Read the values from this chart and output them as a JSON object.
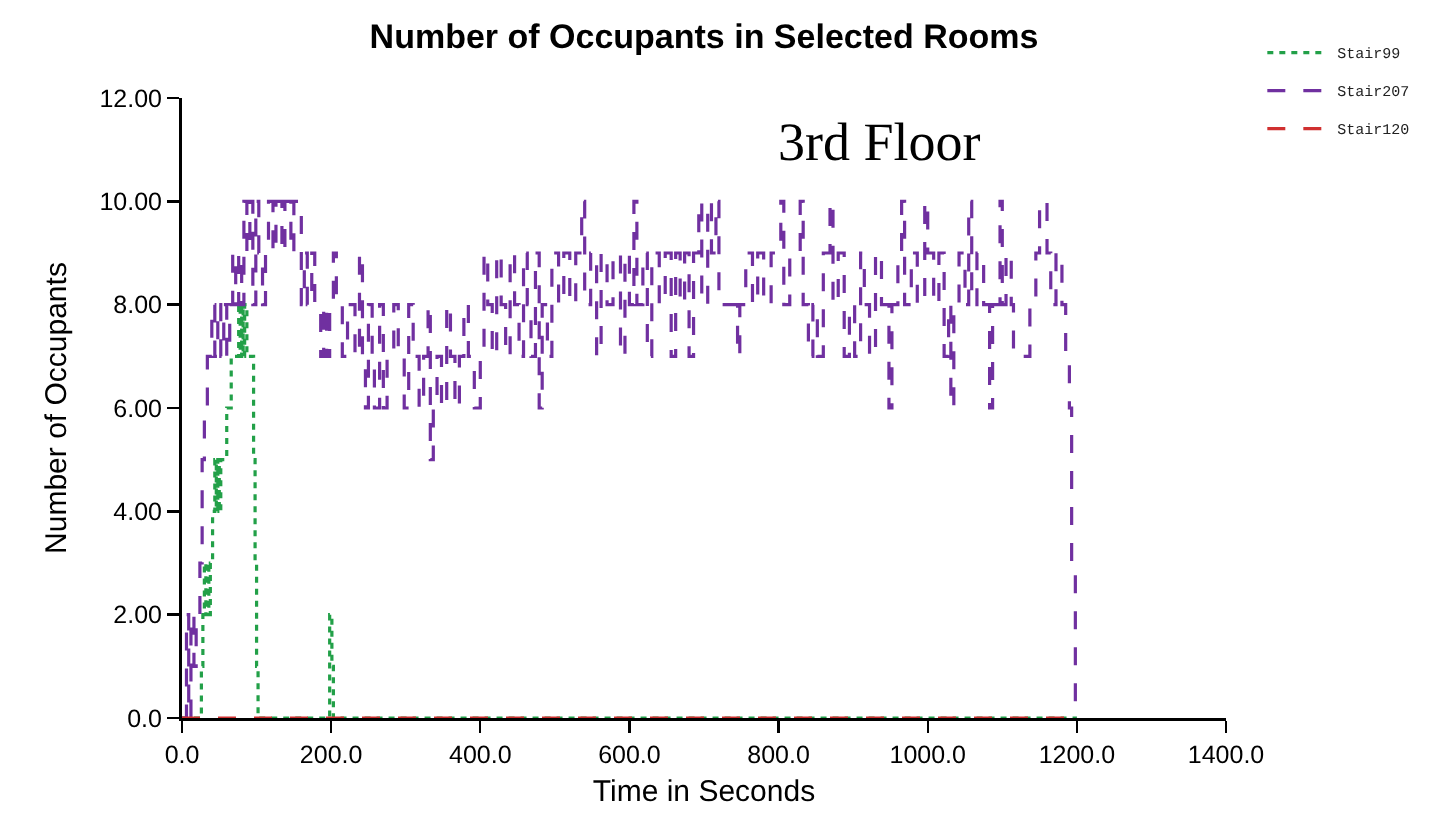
{
  "chart_data": {
    "type": "step",
    "title": "Number of Occupants in Selected Rooms",
    "xlabel": "Time in Seconds",
    "ylabel": "Number of Occupants",
    "annotations": [
      "3rd Floor"
    ],
    "xlim": [
      0,
      1400
    ],
    "xticks": [
      {
        "value": 0,
        "label": "0.0"
      },
      {
        "value": 200,
        "label": "200.0"
      },
      {
        "value": 400,
        "label": "400.0"
      },
      {
        "value": 600,
        "label": "600.0"
      },
      {
        "value": 800,
        "label": "800.0"
      },
      {
        "value": 1000,
        "label": "1000.0"
      },
      {
        "value": 1200,
        "label": "1200.0"
      },
      {
        "value": 1400,
        "label": "1400.0"
      }
    ],
    "ylim": [
      0,
      12
    ],
    "yticks": [
      {
        "value": 0,
        "label": "0.0"
      },
      {
        "value": 2,
        "label": "2.00"
      },
      {
        "value": 4,
        "label": "4.00"
      },
      {
        "value": 6,
        "label": "6.00"
      },
      {
        "value": 8,
        "label": "8.00"
      },
      {
        "value": 10,
        "label": "10.00"
      },
      {
        "value": 12,
        "label": "12.00"
      }
    ],
    "legend": "top right",
    "marker": "none",
    "series": [
      {
        "name": "Stair99",
        "color": "#22a048",
        "line_style": "dotted",
        "x": [
          0,
          24,
          26,
          28,
          30,
          32,
          34,
          36,
          38,
          41,
          44,
          46,
          48,
          50,
          52,
          56,
          60,
          64,
          66,
          72,
          76,
          78,
          80,
          82,
          84,
          87,
          94,
          96,
          98,
          100,
          102,
          196,
          198,
          201,
          203,
          1200
        ],
        "values": [
          0,
          0,
          1,
          2,
          3,
          2,
          3,
          2,
          3,
          4,
          5,
          4,
          5,
          4,
          5,
          5,
          6,
          6,
          7,
          7,
          8,
          7,
          8,
          7,
          8,
          7,
          7,
          5,
          3,
          1,
          0,
          0,
          2,
          1,
          0,
          0
        ]
      },
      {
        "name": "Stair207",
        "color": "#7030a0",
        "line_style": "dashed",
        "x": [
          0,
          6,
          9,
          12,
          16,
          19,
          24,
          27,
          30,
          34,
          40,
          44,
          48,
          52,
          56,
          60,
          64,
          68,
          72,
          76,
          80,
          83,
          87,
          91,
          95,
          99,
          103,
          108,
          112,
          116,
          122,
          126,
          134,
          138,
          146,
          150,
          160,
          164,
          168,
          174,
          178,
          186,
          190,
          194,
          198,
          203,
          207,
          215,
          222,
          232,
          238,
          242,
          246,
          250,
          255,
          258,
          265,
          270,
          275,
          284,
          290,
          298,
          304,
          310,
          318,
          324,
          330,
          333,
          337,
          342,
          348,
          355,
          360,
          366,
          372,
          378,
          384,
          392,
          400,
          405,
          410,
          416,
          422,
          428,
          434,
          440,
          446,
          452,
          458,
          463,
          468,
          474,
          479,
          483,
          490,
          496,
          505,
          512,
          520,
          528,
          536,
          540,
          548,
          556,
          562,
          570,
          578,
          588,
          594,
          600,
          606,
          610,
          618,
          624,
          630,
          640,
          648,
          656,
          662,
          668,
          674,
          680,
          686,
          693,
          697,
          705,
          710,
          716,
          720,
          745,
          748,
          756,
          765,
          772,
          780,
          790,
          803,
          807,
          815,
          829,
          833,
          840,
          846,
          852,
          860,
          869,
          873,
          880,
          888,
          895,
          902,
          910,
          915,
          922,
          930,
          938,
          948,
          952,
          960,
          965,
          969,
          978,
          986,
          996,
          1000,
          1008,
          1015,
          1022,
          1028,
          1031,
          1035,
          1042,
          1050,
          1055,
          1059,
          1066,
          1075,
          1083,
          1087,
          1097,
          1100,
          1105,
          1112,
          1115,
          1137,
          1145,
          1150,
          1160,
          1165,
          1172,
          1180,
          1185,
          1190,
          1193,
          1198,
          1200
        ],
        "values": [
          0,
          2,
          0,
          2,
          1,
          2,
          3,
          5,
          6,
          7,
          8,
          7,
          8,
          7,
          8,
          7,
          8,
          9,
          8,
          9,
          8,
          10,
          9,
          10,
          8,
          10,
          9,
          8,
          9,
          10,
          9,
          10,
          9,
          10,
          9,
          10,
          8,
          9,
          8,
          9,
          8,
          7,
          8,
          7,
          8,
          9,
          8,
          7,
          8,
          7,
          9,
          7,
          6,
          8,
          7,
          6,
          8,
          6,
          7,
          8,
          7,
          6,
          8,
          7,
          6,
          7,
          8,
          5,
          6,
          7,
          6,
          8,
          7,
          6,
          7,
          8,
          7,
          6,
          7,
          9,
          8,
          7,
          9,
          8,
          7,
          9,
          8,
          7,
          9,
          8,
          7,
          9,
          6,
          8,
          7,
          9,
          8,
          9,
          8,
          9,
          10,
          8,
          9,
          7,
          9,
          8,
          9,
          7,
          9,
          8,
          10,
          8,
          9,
          7,
          9,
          8,
          9,
          7,
          9,
          8,
          9,
          7,
          9,
          10,
          8,
          10,
          9,
          10,
          8,
          7,
          8,
          9,
          8,
          9,
          8,
          9,
          10,
          8,
          9,
          10,
          8,
          7,
          8,
          7,
          9,
          10,
          8,
          9,
          7,
          8,
          7,
          9,
          8,
          7,
          9,
          8,
          6,
          8,
          9,
          10,
          8,
          9,
          8,
          10,
          9,
          8,
          9,
          7,
          8,
          6,
          8,
          9,
          8,
          10,
          8,
          9,
          8,
          6,
          8,
          10,
          8,
          9,
          8,
          7,
          8,
          9,
          10,
          9,
          8,
          9,
          8,
          7,
          6,
          3,
          0,
          0
        ]
      },
      {
        "name": "Stair120",
        "color": "#d03030",
        "line_style": "dashed",
        "x": [
          0,
          1200
        ],
        "values": [
          0,
          0
        ]
      }
    ]
  }
}
